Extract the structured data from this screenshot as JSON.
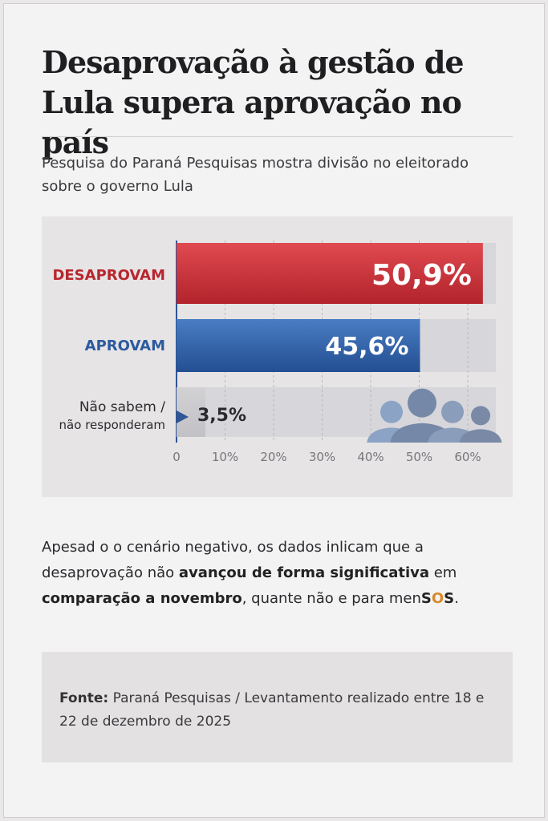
{
  "title": "Desaprovação à gestão de Lula supera aprovação no país",
  "subtitle": "Pesquisa do Paraná Pesquisas mostra divisão no eleitorado sobre o governo Lula",
  "chart_data": {
    "type": "bar",
    "orientation": "horizontal",
    "categories": [
      "DESAPROVAM",
      "APROVAM",
      "Não sabem / não responderam"
    ],
    "values": [
      50.9,
      45.6,
      3.5
    ],
    "value_labels": [
      "50,9%",
      "45,6%",
      "3,5%"
    ],
    "colors": [
      "#c8333b",
      "#2f5fa6",
      "#c9c8cb"
    ],
    "label_colors": [
      "#b8262e",
      "#2c5a9e",
      "#2a2a2e"
    ],
    "xticks": [
      "0",
      "10%",
      "20%",
      "30%",
      "40%",
      "50%",
      "60%"
    ],
    "xlim": [
      0,
      66
    ],
    "grid": true,
    "icon": "people-silhouettes-icon"
  },
  "paragraph": {
    "p1": "Apesad o o cenário negativo, os dados inlicam que a desaprovação não ",
    "b1": "avançou de forma significativa",
    "p2": " em ",
    "b2": "comparação a novembro",
    "p3": ", quante não e para men",
    "s1": "S",
    "o": "O",
    "s2": "S",
    "p4": "."
  },
  "source": {
    "label": "Fonte:",
    "text": " Paraná Pesquisas / Levantamento realizado entre 18 e 22 de dezembro de 2025"
  }
}
